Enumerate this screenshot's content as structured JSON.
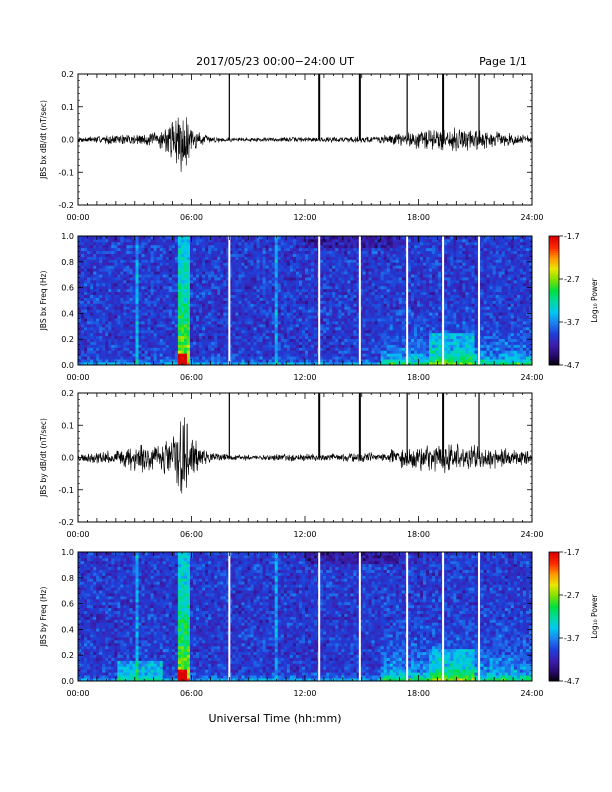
{
  "header": {
    "title": "2017/05/23  00:00−24:00 UT",
    "page": "Page 1/1"
  },
  "xlabel": "Universal Time (hh:mm)",
  "x_ticks": [
    "00:00",
    "06:00",
    "12:00",
    "18:00",
    "24:00"
  ],
  "x_range_hours": [
    0,
    24
  ],
  "colorbar": {
    "label": "Log₁₀ Power",
    "ticks": [
      "-1.7",
      "-2.7",
      "-3.7",
      "-4.7"
    ],
    "range": [
      -4.7,
      -1.7
    ],
    "colors": [
      "#000000",
      "#2a0a6e",
      "#3b1fb0",
      "#1f3fd8",
      "#1e7ff0",
      "#00c8f0",
      "#00d9a0",
      "#00e040",
      "#7ee000",
      "#e8e800",
      "#ff9a00",
      "#ff2a00",
      "#dd0000"
    ]
  },
  "chart_data": [
    {
      "type": "line",
      "ylabel": "JBS bx dB/dt (nT/sec)",
      "y_ticks": [
        "0.2",
        "0.1",
        "0.0",
        "-0.1",
        "-0.2"
      ],
      "ylim": [
        -0.2,
        0.2
      ],
      "series": [
        {
          "x_hours": [
            0,
            1,
            2,
            3,
            4,
            4.5,
            5,
            5.3,
            5.5,
            5.7,
            6,
            6.5,
            7,
            8,
            10,
            12,
            14,
            16,
            17,
            18,
            19,
            20,
            21,
            22,
            23,
            24
          ],
          "amplitude": [
            0.008,
            0.012,
            0.015,
            0.018,
            0.022,
            0.035,
            0.06,
            0.09,
            0.1,
            0.085,
            0.045,
            0.02,
            0.01,
            0.007,
            0.007,
            0.008,
            0.009,
            0.012,
            0.02,
            0.03,
            0.035,
            0.04,
            0.032,
            0.025,
            0.018,
            0.015
          ]
        }
      ],
      "spikes_hours": [
        8.0,
        12.75,
        14.9,
        17.4,
        19.3,
        21.2
      ]
    },
    {
      "type": "heatmap",
      "ylabel": "JBS bx Freq (Hz)",
      "y_ticks": [
        "1.0",
        "0.8",
        "0.6",
        "0.4",
        "0.2",
        "0.0"
      ],
      "ylim": [
        0,
        1
      ],
      "data_gaps_hours": [
        8.0,
        12.75,
        14.9,
        17.4,
        19.3,
        21.2
      ]
    },
    {
      "type": "line",
      "ylabel": "JBS by dB/dt (nT/sec)",
      "y_ticks": [
        "0.2",
        "0.1",
        "0.0",
        "-0.1",
        "-0.2"
      ],
      "ylim": [
        -0.2,
        0.2
      ],
      "series": [
        {
          "x_hours": [
            0,
            1,
            2,
            2.5,
            3,
            3.5,
            4,
            4.5,
            5,
            5.3,
            5.5,
            5.7,
            6,
            6.5,
            7,
            8,
            10,
            12,
            14,
            16,
            17,
            18,
            19,
            20,
            21,
            22,
            23,
            24
          ],
          "amplitude": [
            0.012,
            0.018,
            0.022,
            0.03,
            0.045,
            0.06,
            0.035,
            0.05,
            0.08,
            0.12,
            0.15,
            0.13,
            0.07,
            0.03,
            0.015,
            0.01,
            0.01,
            0.012,
            0.013,
            0.018,
            0.03,
            0.04,
            0.045,
            0.05,
            0.04,
            0.035,
            0.028,
            0.02
          ]
        }
      ],
      "spikes_hours": [
        8.0,
        12.75,
        14.9,
        17.4,
        19.3,
        21.2
      ]
    },
    {
      "type": "heatmap",
      "ylabel": "JBS by Freq (Hz)",
      "y_ticks": [
        "1.0",
        "0.8",
        "0.6",
        "0.4",
        "0.2",
        "0.0"
      ],
      "ylim": [
        0,
        1
      ],
      "data_gaps_hours": [
        8.0,
        12.75,
        14.9,
        17.4,
        19.3,
        21.2
      ]
    }
  ]
}
